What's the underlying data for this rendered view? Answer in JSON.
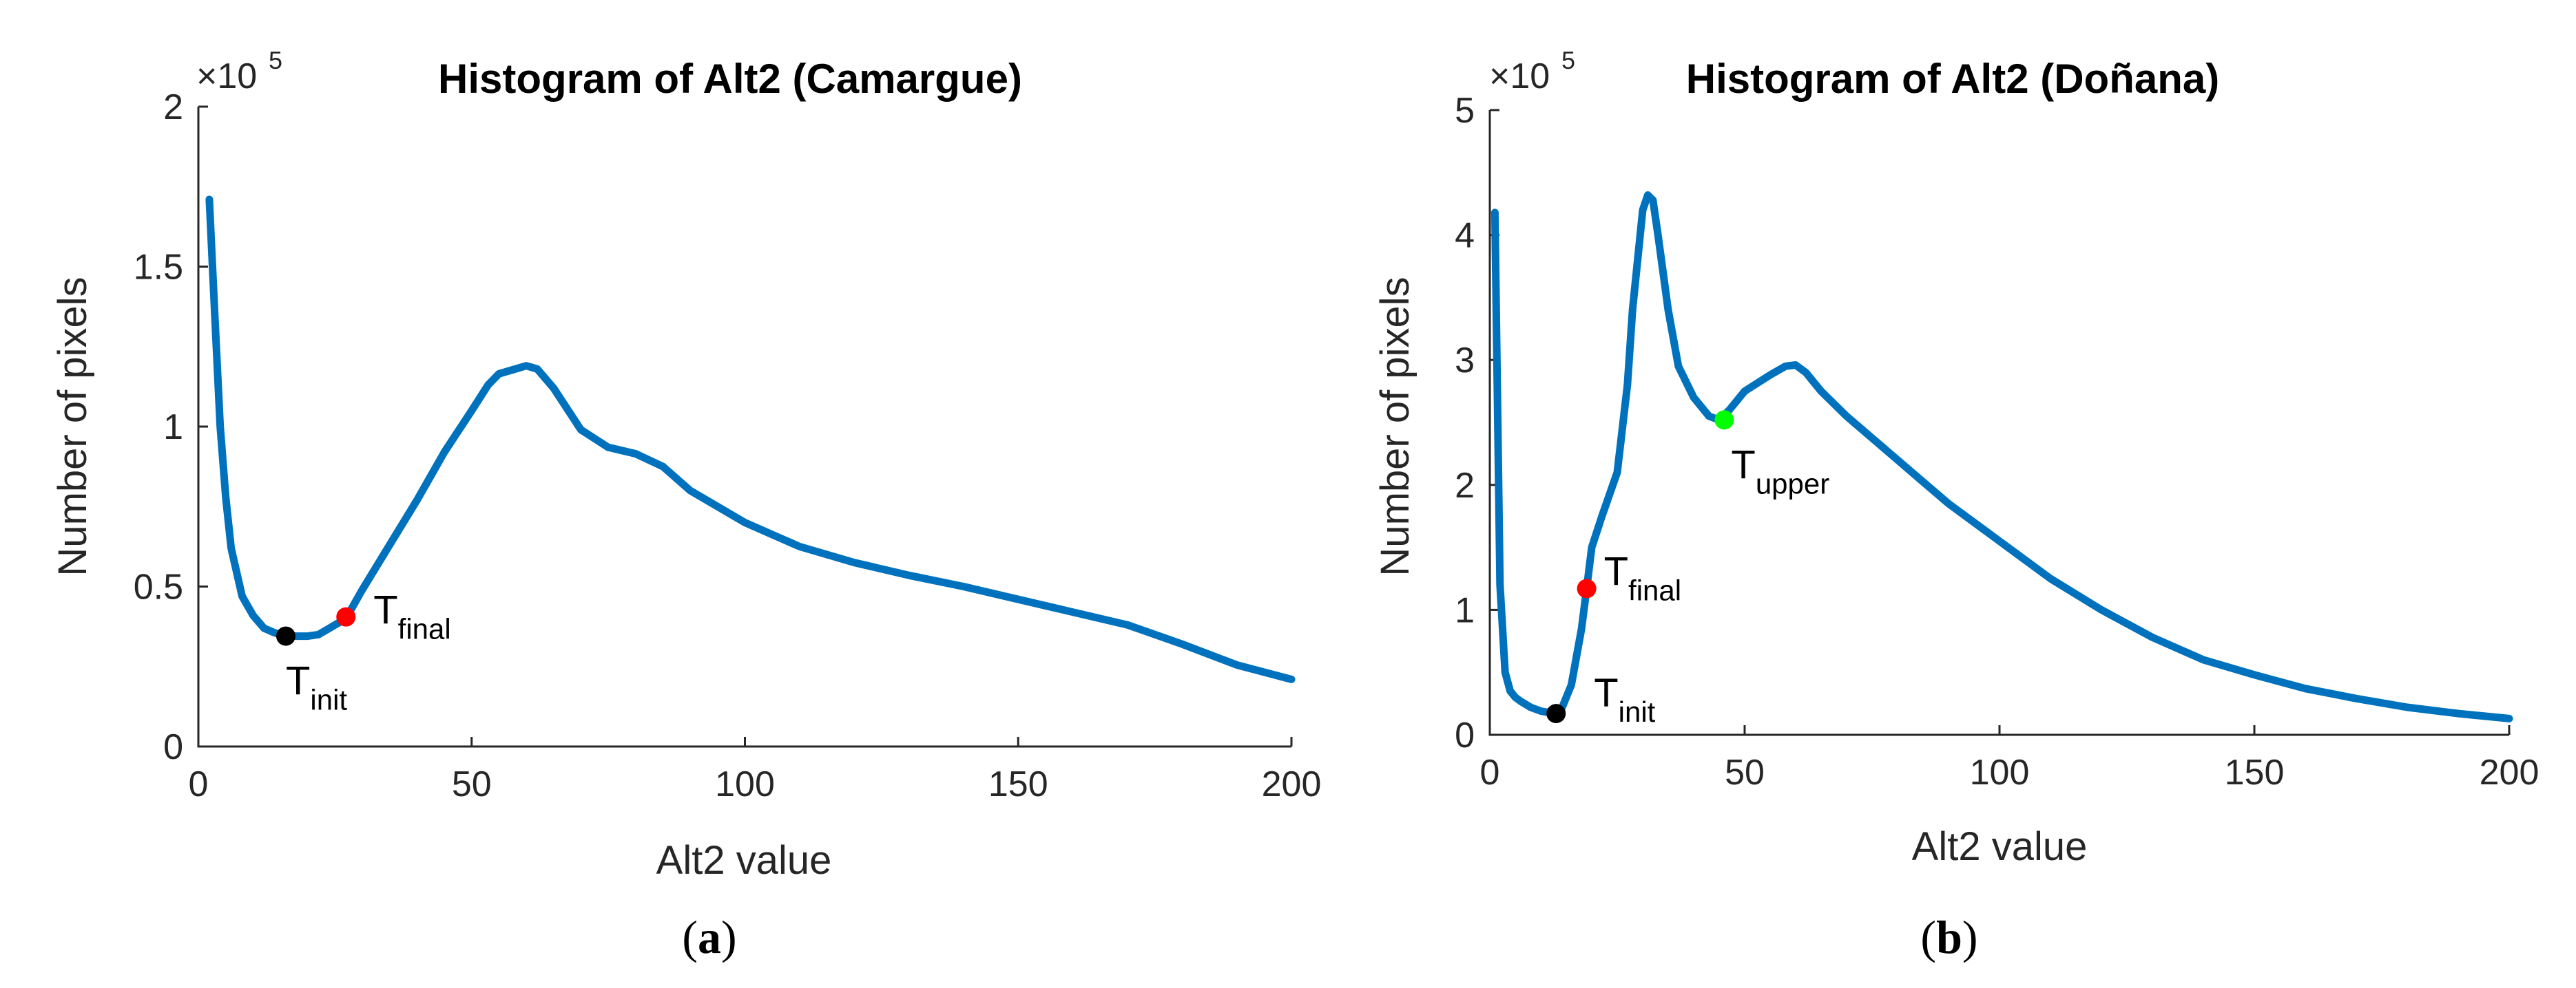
{
  "chart_data": [
    {
      "type": "line",
      "title": "Histogram of Alt2 (Camargue)",
      "xlabel": "Alt2 value",
      "ylabel": "Number of pixels",
      "y_multiplier": "×10",
      "y_multiplier_exp": "5",
      "xlim": [
        0,
        200
      ],
      "ylim": [
        0,
        2
      ],
      "x_ticks": [
        0,
        50,
        100,
        150,
        200
      ],
      "y_ticks": [
        0,
        0.5,
        1,
        1.5,
        2
      ],
      "y_tick_labels": [
        "0",
        "0.5",
        "1",
        "1.5",
        "2"
      ],
      "caption_open": "(",
      "caption_letter": "a",
      "caption_close": ")",
      "series": [
        {
          "name": "Alt2",
          "color": "#0072BD",
          "x": [
            2,
            3,
            4,
            5,
            6,
            8,
            10,
            12,
            14,
            16,
            18,
            20,
            22,
            24,
            26,
            28,
            30,
            35,
            40,
            45,
            50,
            53,
            55,
            58,
            60,
            62,
            65,
            70,
            75,
            80,
            85,
            90,
            95,
            100,
            110,
            120,
            130,
            140,
            150,
            160,
            170,
            180,
            190,
            200
          ],
          "y": [
            1.71,
            1.35,
            1.0,
            0.78,
            0.62,
            0.47,
            0.41,
            0.37,
            0.355,
            0.347,
            0.345,
            0.345,
            0.35,
            0.37,
            0.39,
            0.43,
            0.49,
            0.63,
            0.77,
            0.92,
            1.05,
            1.13,
            1.165,
            1.18,
            1.19,
            1.18,
            1.12,
            0.99,
            0.935,
            0.915,
            0.875,
            0.8,
            0.75,
            0.7,
            0.625,
            0.575,
            0.535,
            0.5,
            0.46,
            0.42,
            0.38,
            0.32,
            0.255,
            0.21
          ]
        }
      ],
      "markers": [
        {
          "label": "T",
          "sub": "init",
          "x": 16,
          "y": 0.345,
          "color": "#000000"
        },
        {
          "label": "T",
          "sub": "final",
          "x": 27,
          "y": 0.405,
          "color": "#FF0000"
        }
      ]
    },
    {
      "type": "line",
      "title": "Histogram of Alt2 (Doñana)",
      "xlabel": "Alt2 value",
      "ylabel": "Number of pixels",
      "y_multiplier": "×10",
      "y_multiplier_exp": "5",
      "xlim": [
        0,
        200
      ],
      "ylim": [
        0,
        5
      ],
      "x_ticks": [
        0,
        50,
        100,
        150,
        200
      ],
      "y_ticks": [
        0,
        1,
        2,
        3,
        4,
        5
      ],
      "y_tick_labels": [
        "0",
        "1",
        "2",
        "3",
        "4",
        "5"
      ],
      "caption_open": "(",
      "caption_letter": "b",
      "caption_close": ")",
      "series": [
        {
          "name": "Alt2",
          "color": "#0072BD",
          "x": [
            1,
            2,
            3,
            4,
            5,
            6,
            8,
            10,
            12,
            13,
            14,
            16,
            18,
            19,
            20,
            22,
            25,
            27,
            28,
            30,
            31,
            32,
            33,
            35,
            37,
            40,
            43,
            45,
            47,
            50,
            55,
            58,
            60,
            62,
            65,
            70,
            80,
            90,
            100,
            110,
            120,
            130,
            140,
            150,
            160,
            170,
            180,
            190,
            200
          ],
          "y": [
            4.18,
            1.2,
            0.5,
            0.35,
            0.3,
            0.27,
            0.22,
            0.19,
            0.175,
            0.17,
            0.2,
            0.4,
            0.85,
            1.17,
            1.5,
            1.75,
            2.1,
            2.8,
            3.4,
            4.2,
            4.32,
            4.28,
            4.0,
            3.4,
            2.95,
            2.7,
            2.55,
            2.52,
            2.6,
            2.75,
            2.88,
            2.95,
            2.96,
            2.9,
            2.75,
            2.55,
            2.2,
            1.85,
            1.55,
            1.25,
            1.0,
            0.78,
            0.6,
            0.48,
            0.37,
            0.29,
            0.22,
            0.17,
            0.13
          ]
        }
      ],
      "markers": [
        {
          "label": "T",
          "sub": "init",
          "x": 13,
          "y": 0.17,
          "color": "#000000"
        },
        {
          "label": "T",
          "sub": "final",
          "x": 19,
          "y": 1.17,
          "color": "#FF0000"
        },
        {
          "label": "T",
          "sub": "upper",
          "x": 46,
          "y": 2.52,
          "color": "#00FF00"
        }
      ]
    }
  ]
}
